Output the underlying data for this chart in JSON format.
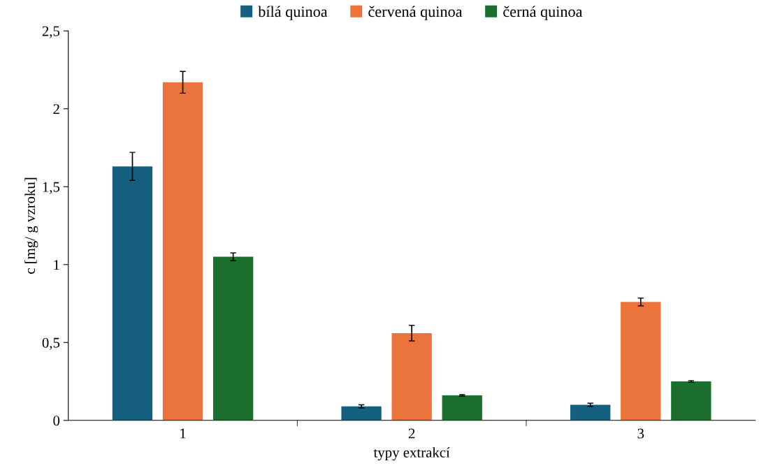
{
  "chart_data": {
    "type": "bar",
    "xlabel": "typy extrakcí",
    "ylabel": "c [mg/ g vzroku]",
    "categories": [
      "1",
      "2",
      "3"
    ],
    "series": [
      {
        "name": "bílá quinoa",
        "color": "#15607f",
        "values": [
          1.63,
          0.09,
          0.1
        ],
        "errors": [
          0.09,
          0.01,
          0.01
        ]
      },
      {
        "name": "červená quinoa",
        "color": "#eb733c",
        "values": [
          2.17,
          0.56,
          0.76
        ],
        "errors": [
          0.07,
          0.05,
          0.025
        ]
      },
      {
        "name": "černá quinoa",
        "color": "#1b6e2e",
        "values": [
          1.05,
          0.16,
          0.25
        ],
        "errors": [
          0.025,
          0.005,
          0.005
        ]
      }
    ],
    "ylim": [
      0,
      2.5
    ],
    "yticks": [
      0,
      {
        "value": 0.5,
        "label": "0,5"
      },
      1,
      {
        "value": 1.5,
        "label": "1,5"
      },
      2,
      {
        "value": 2.5,
        "label": "2,5"
      }
    ],
    "legend": "top",
    "grid": false
  }
}
